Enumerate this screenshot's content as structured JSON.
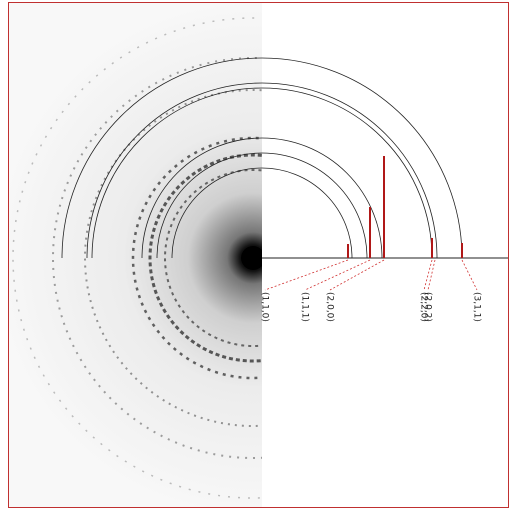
{
  "peak_labels": [
    "(1,1,0)",
    "(1,1,1)",
    "(2,0,0)",
    "(2,2,0)",
    "(2,0,2)",
    "(3,1,1)"
  ]
}
